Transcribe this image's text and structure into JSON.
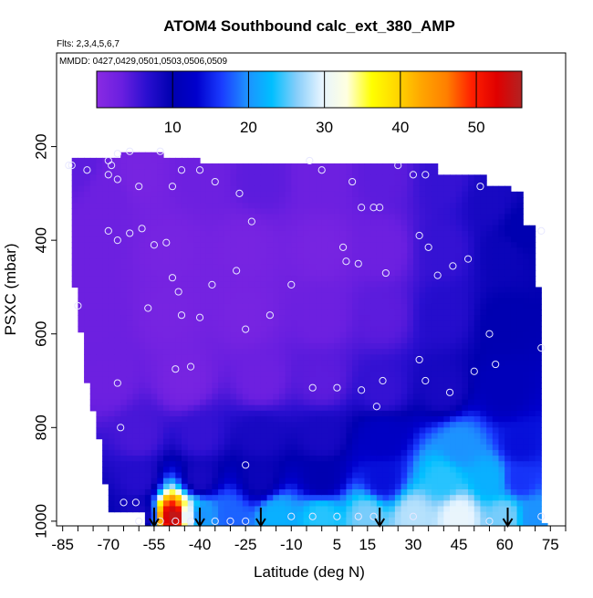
{
  "chart_data": {
    "type": "heatmap",
    "title": "ATOM4 Southbound calc_ext_380_AMP",
    "note_flights": "Flts: 2,3,4,5,6,7",
    "note_dates": "MMDD: 0427,0429,0501,0503,0506,0509",
    "xlabel": "Latitude (deg N)",
    "ylabel": "PSXC (mbar)",
    "xlim": [
      -87,
      80
    ],
    "ylim": [
      1010,
      0
    ],
    "x_ticks": [
      -85,
      -70,
      -55,
      -40,
      -25,
      -10,
      5,
      15,
      30,
      45,
      60,
      75
    ],
    "x_minor_step": 5,
    "y_ticks": [
      200,
      400,
      600,
      800,
      1000
    ],
    "colorbar": {
      "min": 0,
      "max": 56,
      "ticks": [
        10,
        20,
        30,
        40,
        50
      ],
      "stops": [
        "#8a2be2",
        "#6a1fe0",
        "#2a0fd0",
        "#0000b0",
        "#0000cd",
        "#1a3cff",
        "#1e90ff",
        "#00bfff",
        "#87cefa",
        "#e6f4ff",
        "#ffffe0",
        "#ffff00",
        "#ffd700",
        "#ffa500",
        "#ff7f00",
        "#ff2000",
        "#e00000",
        "#b22222"
      ]
    },
    "region_boundary": {
      "top": [
        [
          -82,
          220
        ],
        [
          -75,
          225
        ],
        [
          -70,
          230
        ],
        [
          -66,
          225
        ],
        [
          -64,
          210
        ],
        [
          -60,
          210
        ],
        [
          -55,
          210
        ],
        [
          -53,
          210
        ],
        [
          -52,
          225
        ],
        [
          -40,
          230
        ],
        [
          -30,
          235
        ],
        [
          -20,
          240
        ],
        [
          -10,
          240
        ],
        [
          0,
          240
        ],
        [
          10,
          240
        ],
        [
          20,
          240
        ],
        [
          30,
          240
        ],
        [
          37,
          240
        ],
        [
          37,
          260
        ],
        [
          43,
          260
        ],
        [
          50,
          262
        ],
        [
          53,
          262
        ],
        [
          53,
          280
        ],
        [
          62,
          280
        ],
        [
          62,
          300
        ],
        [
          66,
          300
        ],
        [
          66,
          370
        ],
        [
          70,
          370
        ]
      ],
      "bottom_lat": [
        -82,
        -72,
        -67,
        -64,
        -58,
        -55,
        -50,
        -45,
        -40,
        -30,
        -20,
        -10,
        0,
        10,
        20,
        30,
        40,
        50,
        60,
        70
      ],
      "left_edge": [
        [
          -82,
          220
        ],
        [
          -82,
          420
        ],
        [
          -81,
          500
        ],
        [
          -80,
          560
        ],
        [
          -79,
          600
        ],
        [
          -78,
          650
        ],
        [
          -77,
          700
        ],
        [
          -75,
          760
        ],
        [
          -73,
          820
        ],
        [
          -72,
          870
        ],
        [
          -71,
          920
        ],
        [
          -70,
          960
        ],
        [
          -70,
          975
        ]
      ],
      "right_edge": [
        [
          70,
          370
        ],
        [
          71,
          500
        ],
        [
          71,
          700
        ],
        [
          72,
          900
        ],
        [
          73,
          1000
        ]
      ]
    },
    "grid_samples": [
      {
        "lat": -80,
        "p": 240,
        "v": 4
      },
      {
        "lat": -70,
        "p": 300,
        "v": 3
      },
      {
        "lat": -60,
        "p": 260,
        "v": 2
      },
      {
        "lat": -40,
        "p": 260,
        "v": 3
      },
      {
        "lat": -20,
        "p": 270,
        "v": 4
      },
      {
        "lat": 0,
        "p": 260,
        "v": 3
      },
      {
        "lat": 20,
        "p": 260,
        "v": 4
      },
      {
        "lat": 40,
        "p": 270,
        "v": 6
      },
      {
        "lat": 55,
        "p": 320,
        "v": 8
      },
      {
        "lat": 65,
        "p": 380,
        "v": 10
      },
      {
        "lat": -75,
        "p": 400,
        "v": 3
      },
      {
        "lat": -50,
        "p": 420,
        "v": 2
      },
      {
        "lat": -25,
        "p": 420,
        "v": 2
      },
      {
        "lat": 0,
        "p": 420,
        "v": 2
      },
      {
        "lat": 20,
        "p": 420,
        "v": 3
      },
      {
        "lat": 40,
        "p": 420,
        "v": 6
      },
      {
        "lat": 60,
        "p": 430,
        "v": 9
      },
      {
        "lat": -75,
        "p": 560,
        "v": 3
      },
      {
        "lat": -50,
        "p": 560,
        "v": 2
      },
      {
        "lat": -25,
        "p": 560,
        "v": 2
      },
      {
        "lat": 0,
        "p": 560,
        "v": 3
      },
      {
        "lat": 20,
        "p": 560,
        "v": 4
      },
      {
        "lat": 40,
        "p": 560,
        "v": 7
      },
      {
        "lat": 60,
        "p": 580,
        "v": 10
      },
      {
        "lat": -70,
        "p": 700,
        "v": 3
      },
      {
        "lat": -45,
        "p": 700,
        "v": 2
      },
      {
        "lat": -20,
        "p": 700,
        "v": 3
      },
      {
        "lat": 0,
        "p": 700,
        "v": 4
      },
      {
        "lat": 20,
        "p": 720,
        "v": 6
      },
      {
        "lat": 40,
        "p": 720,
        "v": 8
      },
      {
        "lat": 60,
        "p": 720,
        "v": 11
      },
      {
        "lat": -60,
        "p": 820,
        "v": 5
      },
      {
        "lat": -40,
        "p": 820,
        "v": 6
      },
      {
        "lat": -20,
        "p": 820,
        "v": 8
      },
      {
        "lat": 0,
        "p": 820,
        "v": 8
      },
      {
        "lat": 20,
        "p": 820,
        "v": 12
      },
      {
        "lat": 45,
        "p": 840,
        "v": 20
      },
      {
        "lat": 65,
        "p": 840,
        "v": 14
      },
      {
        "lat": -60,
        "p": 910,
        "v": 7
      },
      {
        "lat": -40,
        "p": 910,
        "v": 8
      },
      {
        "lat": -20,
        "p": 910,
        "v": 9
      },
      {
        "lat": 0,
        "p": 910,
        "v": 10
      },
      {
        "lat": 20,
        "p": 910,
        "v": 14
      },
      {
        "lat": 40,
        "p": 910,
        "v": 24
      },
      {
        "lat": 55,
        "p": 910,
        "v": 22
      },
      {
        "lat": 65,
        "p": 910,
        "v": 16
      },
      {
        "lat": -60,
        "p": 990,
        "v": 8
      },
      {
        "lat": -48,
        "p": 990,
        "v": 55
      },
      {
        "lat": -44,
        "p": 990,
        "v": 30
      },
      {
        "lat": -40,
        "p": 990,
        "v": 20
      },
      {
        "lat": -30,
        "p": 990,
        "v": 18
      },
      {
        "lat": -15,
        "p": 990,
        "v": 22
      },
      {
        "lat": 0,
        "p": 990,
        "v": 24
      },
      {
        "lat": 15,
        "p": 990,
        "v": 26
      },
      {
        "lat": 30,
        "p": 990,
        "v": 28
      },
      {
        "lat": 45,
        "p": 990,
        "v": 30
      },
      {
        "lat": 60,
        "p": 990,
        "v": 26
      },
      {
        "lat": 70,
        "p": 990,
        "v": 20
      }
    ],
    "sample_points": [
      [
        -83,
        240
      ],
      [
        -77,
        250
      ],
      [
        -70,
        230
      ],
      [
        -69,
        240
      ],
      [
        -67,
        215
      ],
      [
        -70,
        260
      ],
      [
        -67,
        270
      ],
      [
        -63,
        210
      ],
      [
        -60,
        285
      ],
      [
        -53,
        210
      ],
      [
        -49,
        285
      ],
      [
        -46,
        250
      ],
      [
        -40,
        250
      ],
      [
        -35,
        275
      ],
      [
        -27,
        300
      ],
      [
        -23,
        360
      ],
      [
        -28,
        465
      ],
      [
        -36,
        495
      ],
      [
        -40,
        565
      ],
      [
        -46,
        560
      ],
      [
        -47,
        510
      ],
      [
        -49,
        480
      ],
      [
        -51,
        405
      ],
      [
        -55,
        410
      ],
      [
        -59,
        375
      ],
      [
        -63,
        385
      ],
      [
        -67,
        400
      ],
      [
        -70,
        380
      ],
      [
        -80,
        540
      ],
      [
        -57,
        545
      ],
      [
        -67,
        705
      ],
      [
        -66,
        800
      ],
      [
        -48,
        675
      ],
      [
        -43,
        670
      ],
      [
        -25,
        590
      ],
      [
        -17,
        560
      ],
      [
        -10,
        495
      ],
      [
        -4,
        230
      ],
      [
        0,
        250
      ],
      [
        7,
        415
      ],
      [
        10,
        275
      ],
      [
        13,
        330
      ],
      [
        17,
        330
      ],
      [
        19,
        330
      ],
      [
        21,
        470
      ],
      [
        12,
        450
      ],
      [
        8,
        445
      ],
      [
        25,
        240
      ],
      [
        30,
        260
      ],
      [
        34,
        260
      ],
      [
        32,
        390
      ],
      [
        35,
        415
      ],
      [
        38,
        475
      ],
      [
        43,
        455
      ],
      [
        48,
        440
      ],
      [
        52,
        285
      ],
      [
        55,
        600
      ],
      [
        57,
        665
      ],
      [
        50,
        680
      ],
      [
        42,
        725
      ],
      [
        34,
        700
      ],
      [
        32,
        655
      ],
      [
        20,
        700
      ],
      [
        13,
        720
      ],
      [
        18,
        755
      ],
      [
        5,
        715
      ],
      [
        -3,
        715
      ],
      [
        -25,
        880
      ],
      [
        -65,
        960
      ],
      [
        -61,
        960
      ],
      [
        -60,
        1000
      ],
      [
        -53,
        1000
      ],
      [
        -48,
        1000
      ],
      [
        -43,
        1000
      ],
      [
        -35,
        1000
      ],
      [
        -30,
        1000
      ],
      [
        -25,
        1000
      ],
      [
        -10,
        990
      ],
      [
        -3,
        990
      ],
      [
        5,
        990
      ],
      [
        12,
        990
      ],
      [
        17,
        990
      ],
      [
        30,
        990
      ],
      [
        55,
        1000
      ],
      [
        72,
        990
      ],
      [
        72,
        380
      ],
      [
        72,
        630
      ],
      [
        -82,
        240
      ]
    ],
    "flight_markers_lat": [
      -55,
      -40,
      -20,
      19,
      61
    ]
  }
}
